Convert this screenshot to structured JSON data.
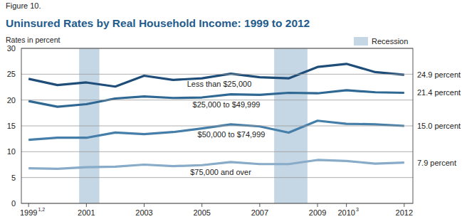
{
  "chart_data": {
    "type": "line",
    "figure_label": "Figure 10.",
    "title": "Uninsured Rates by Real Household Income: 1999 to 2012",
    "y_label": "Rates in percent",
    "x": [
      1999,
      2000,
      2001,
      2002,
      2003,
      2004,
      2005,
      2006,
      2007,
      2008,
      2009,
      2010,
      2011,
      2012
    ],
    "series": [
      {
        "name": "Less than $25,000",
        "color": "#1d4d78",
        "values": [
          24.1,
          22.9,
          23.4,
          22.6,
          24.7,
          23.9,
          24.2,
          25.1,
          24.4,
          24.2,
          26.4,
          27.0,
          25.4,
          24.9
        ],
        "end_label": "24.9 percent"
      },
      {
        "name": "$25,000 to $49,999",
        "color": "#2f6893",
        "values": [
          19.8,
          18.7,
          19.2,
          20.3,
          20.7,
          20.4,
          20.5,
          21.1,
          21.0,
          21.4,
          21.3,
          21.9,
          21.5,
          21.4
        ],
        "end_label": "21.4 percent"
      },
      {
        "name": "$50,000 to $74,999",
        "color": "#457ea8",
        "values": [
          12.3,
          12.7,
          12.7,
          13.7,
          13.4,
          13.8,
          14.5,
          15.3,
          14.9,
          13.7,
          16.0,
          15.4,
          15.3,
          15.0
        ],
        "end_label": "15.0 percent"
      },
      {
        "name": "$75,000 and over",
        "color": "#87abc8",
        "values": [
          6.8,
          6.7,
          7.0,
          7.1,
          7.5,
          7.2,
          7.4,
          8.0,
          7.6,
          7.6,
          8.4,
          8.2,
          7.7,
          7.9
        ],
        "end_label": "7.9 percent"
      }
    ],
    "xlim": [
      1998.75,
      2012.3
    ],
    "xticks": [
      1999,
      2001,
      2003,
      2005,
      2007,
      2009,
      2010,
      2012
    ],
    "x_footnotes": [
      {
        "value": 1999,
        "label": "1,2"
      },
      {
        "value": 2010,
        "label": "3"
      }
    ],
    "ylim": [
      0,
      30
    ],
    "yticks": [
      0,
      5,
      10,
      15,
      20,
      25,
      30
    ],
    "grid": true,
    "legend": "top-right",
    "recessions": {
      "name": "Recession",
      "color": "#c5d6e5",
      "ranges": [
        [
          2000.75,
          2001.45
        ],
        [
          2007.5,
          2008.65
        ]
      ]
    }
  }
}
